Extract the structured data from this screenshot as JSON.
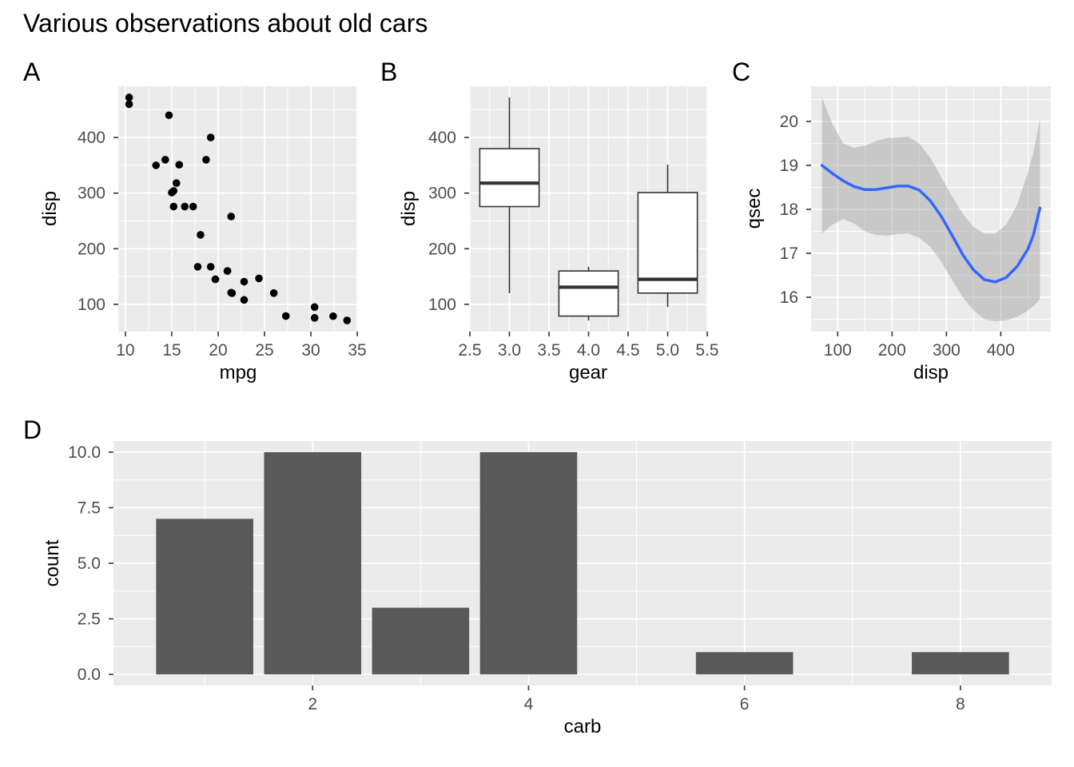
{
  "figure": {
    "title": "Various observations about old cars",
    "colors": {
      "background": "#FFFFFF",
      "panel_background": "#EBEBEB",
      "grid": "#FFFFFF",
      "tick_label": "#4D4D4D",
      "tick_mark": "#333333",
      "text": "#000000",
      "point": "#000000",
      "box_border": "#333333",
      "box_fill": "#FFFFFF",
      "bar": "#595959",
      "smooth_line": "#3366FF",
      "ribbon": "rgba(153,153,153,0.42)"
    }
  },
  "panels": [
    {
      "tag": "A"
    },
    {
      "tag": "B"
    },
    {
      "tag": "C"
    },
    {
      "tag": "D"
    }
  ],
  "chart_data": [
    {
      "panel": "A",
      "type": "scatter",
      "xlabel": "mpg",
      "ylabel": "disp",
      "xlim": [
        9.23,
        35.08
      ],
      "ylim": [
        51.06,
        492.05
      ],
      "x_ticks": [
        10,
        15,
        20,
        25,
        30,
        35
      ],
      "x_tick_labels": [
        "10",
        "15",
        "20",
        "25",
        "30",
        "35"
      ],
      "x_minor": [
        12.5,
        17.5,
        22.5,
        27.5,
        32.5
      ],
      "y_ticks": [
        100,
        200,
        300,
        400
      ],
      "y_tick_labels": [
        "100",
        "200",
        "300",
        "400"
      ],
      "y_minor": [
        150,
        250,
        350,
        450
      ],
      "grid": true,
      "legend": "none",
      "points": [
        [
          21.0,
          160
        ],
        [
          21.0,
          160
        ],
        [
          22.8,
          108
        ],
        [
          21.4,
          258
        ],
        [
          18.7,
          360
        ],
        [
          18.1,
          225
        ],
        [
          14.3,
          360
        ],
        [
          24.4,
          146.7
        ],
        [
          22.8,
          140.8
        ],
        [
          19.2,
          167.6
        ],
        [
          17.8,
          167.6
        ],
        [
          16.4,
          275.8
        ],
        [
          17.3,
          275.8
        ],
        [
          15.2,
          275.8
        ],
        [
          10.4,
          472
        ],
        [
          10.4,
          460
        ],
        [
          14.7,
          440
        ],
        [
          32.4,
          78.7
        ],
        [
          30.4,
          75.7
        ],
        [
          33.9,
          71.1
        ],
        [
          21.5,
          120.1
        ],
        [
          15.5,
          318
        ],
        [
          15.2,
          304
        ],
        [
          13.3,
          350
        ],
        [
          19.2,
          400
        ],
        [
          27.3,
          79
        ],
        [
          26.0,
          120.3
        ],
        [
          30.4,
          95.1
        ],
        [
          15.8,
          351
        ],
        [
          19.7,
          145
        ],
        [
          15.0,
          301
        ],
        [
          21.4,
          121
        ]
      ]
    },
    {
      "panel": "B",
      "type": "boxplot",
      "xlabel": "gear",
      "ylabel": "disp",
      "xlim": [
        2.49,
        5.51
      ],
      "ylim": [
        51.06,
        492.05
      ],
      "x_ticks": [
        2.5,
        3.0,
        3.5,
        4.0,
        4.5,
        5.0,
        5.5
      ],
      "x_tick_labels": [
        "2.5",
        "3.0",
        "3.5",
        "4.0",
        "4.5",
        "5.0",
        "5.5"
      ],
      "x_minor": [
        2.75,
        3.25,
        3.75,
        4.25,
        4.75,
        5.25
      ],
      "y_ticks": [
        100,
        200,
        300,
        400
      ],
      "y_tick_labels": [
        "100",
        "200",
        "300",
        "400"
      ],
      "y_minor": [
        150,
        250,
        350,
        450
      ],
      "grid": true,
      "legend": "none",
      "box_width": 0.75,
      "boxes": [
        {
          "x": 3,
          "min": 120.1,
          "q1": 275.8,
          "median": 318,
          "q3": 380,
          "max": 472
        },
        {
          "x": 4,
          "min": 71.1,
          "q1": 78.9,
          "median": 130.9,
          "q3": 160,
          "max": 167.6
        },
        {
          "x": 5,
          "min": 95.1,
          "q1": 120.3,
          "median": 145,
          "q3": 301,
          "max": 351
        }
      ]
    },
    {
      "panel": "C",
      "type": "line",
      "xlabel": "disp",
      "ylabel": "qsec",
      "xlim": [
        51.06,
        492.05
      ],
      "ylim": [
        15.22,
        20.8
      ],
      "x_ticks": [
        100,
        200,
        300,
        400
      ],
      "x_tick_labels": [
        "100",
        "200",
        "300",
        "400"
      ],
      "x_minor": [
        150,
        250,
        350,
        450
      ],
      "y_ticks": [
        16,
        17,
        18,
        19,
        20
      ],
      "y_tick_labels": [
        "16",
        "17",
        "18",
        "19",
        "20"
      ],
      "y_minor": [
        15.5,
        16.5,
        17.5,
        18.5,
        19.5,
        20.5
      ],
      "grid": true,
      "legend": "none",
      "x": [
        71,
        90,
        110,
        130,
        150,
        170,
        190,
        210,
        230,
        250,
        270,
        290,
        310,
        330,
        350,
        370,
        390,
        410,
        430,
        450,
        460,
        472
      ],
      "y": [
        19.0,
        18.82,
        18.65,
        18.52,
        18.45,
        18.45,
        18.49,
        18.53,
        18.53,
        18.44,
        18.2,
        17.85,
        17.42,
        16.97,
        16.62,
        16.4,
        16.35,
        16.45,
        16.7,
        17.1,
        17.42,
        18.03
      ],
      "ribbon_lower": [
        17.45,
        17.65,
        17.78,
        17.68,
        17.5,
        17.42,
        17.4,
        17.44,
        17.45,
        17.35,
        17.15,
        16.82,
        16.4,
        16.0,
        15.7,
        15.5,
        15.45,
        15.48,
        15.55,
        15.7,
        15.8,
        15.95
      ],
      "ribbon_upper": [
        20.55,
        19.95,
        19.5,
        19.4,
        19.45,
        19.55,
        19.62,
        19.63,
        19.65,
        19.5,
        19.18,
        18.75,
        18.3,
        17.9,
        17.6,
        17.45,
        17.45,
        17.65,
        18.1,
        18.85,
        19.3,
        20.05
      ]
    },
    {
      "panel": "D",
      "type": "bar",
      "xlabel": "carb",
      "ylabel": "count",
      "xlim": [
        0.155,
        8.845
      ],
      "ylim": [
        -0.5,
        10.5
      ],
      "x_ticks": [
        2,
        4,
        6,
        8
      ],
      "x_tick_labels": [
        "2",
        "4",
        "6",
        "8"
      ],
      "x_minor": [
        1,
        3,
        5,
        7
      ],
      "y_ticks": [
        0,
        2.5,
        5,
        7.5,
        10
      ],
      "y_tick_labels": [
        "0.0",
        "2.5",
        "5.0",
        "7.5",
        "10.0"
      ],
      "y_minor": [
        1.25,
        3.75,
        6.25,
        8.75
      ],
      "grid": true,
      "legend": "none",
      "bar_width": 0.9,
      "categories": [
        1,
        2,
        3,
        4,
        6,
        8
      ],
      "values": [
        7,
        10,
        3,
        10,
        1,
        1
      ]
    }
  ]
}
